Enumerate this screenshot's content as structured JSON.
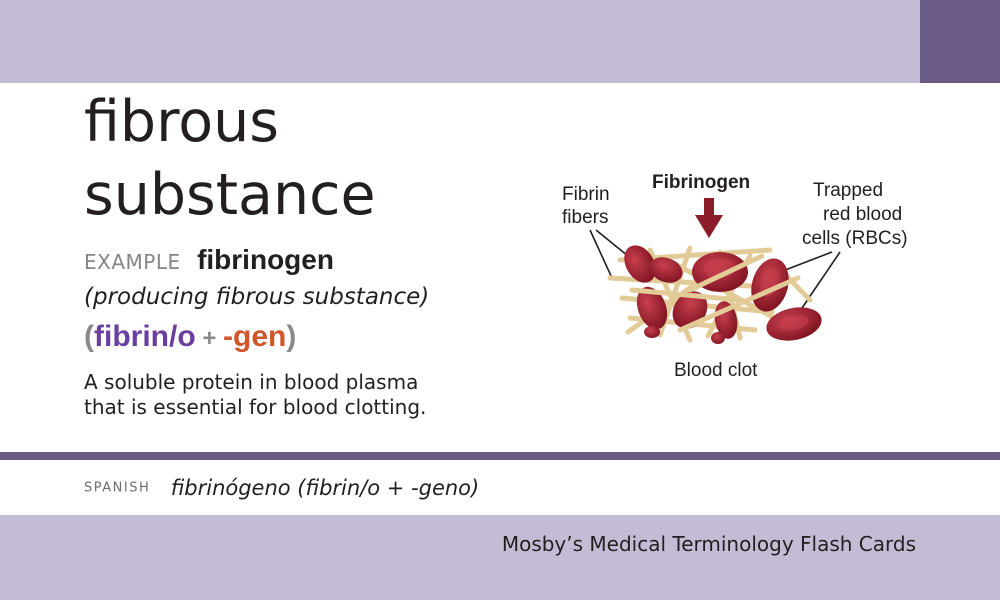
{
  "card": {
    "term_line1": "fibrous",
    "term_line2": "substance",
    "example_label": "EXAMPLE",
    "example_word": "fibrinogen",
    "meaning": "(producing fibrous substance)",
    "breakdown": {
      "open": "(",
      "root": "fibrin/o",
      "plus": " + ",
      "suffix": "-gen",
      "close": ")"
    },
    "definition_line1": "A soluble protein in blood plasma",
    "definition_line2": "that is essential for blood clotting."
  },
  "illustration": {
    "label_fibrin_line1": "Fibrin",
    "label_fibrin_line2": "fibers",
    "label_fibrinogen": "Fibrinogen",
    "label_trapped_line1": "Trapped",
    "label_trapped_line2": "red blood",
    "label_trapped_line3": "cells (RBCs)",
    "label_clot": "Blood clot",
    "colors": {
      "rbc": "#9b1b2a",
      "rbc_highlight": "#c8404e",
      "fiber": "#e3cb98",
      "arrow": "#8b1c2b"
    }
  },
  "spanish": {
    "label": "SPANISH",
    "text": "fibrinógeno (fibrin/o + -geno)"
  },
  "footer": {
    "text": "Mosby’s Medical Terminology Flash Cards"
  },
  "colors": {
    "band": "#c4bcd4",
    "accent": "#6a5b85",
    "root": "#6b3fa0",
    "suffix": "#d1562a"
  }
}
